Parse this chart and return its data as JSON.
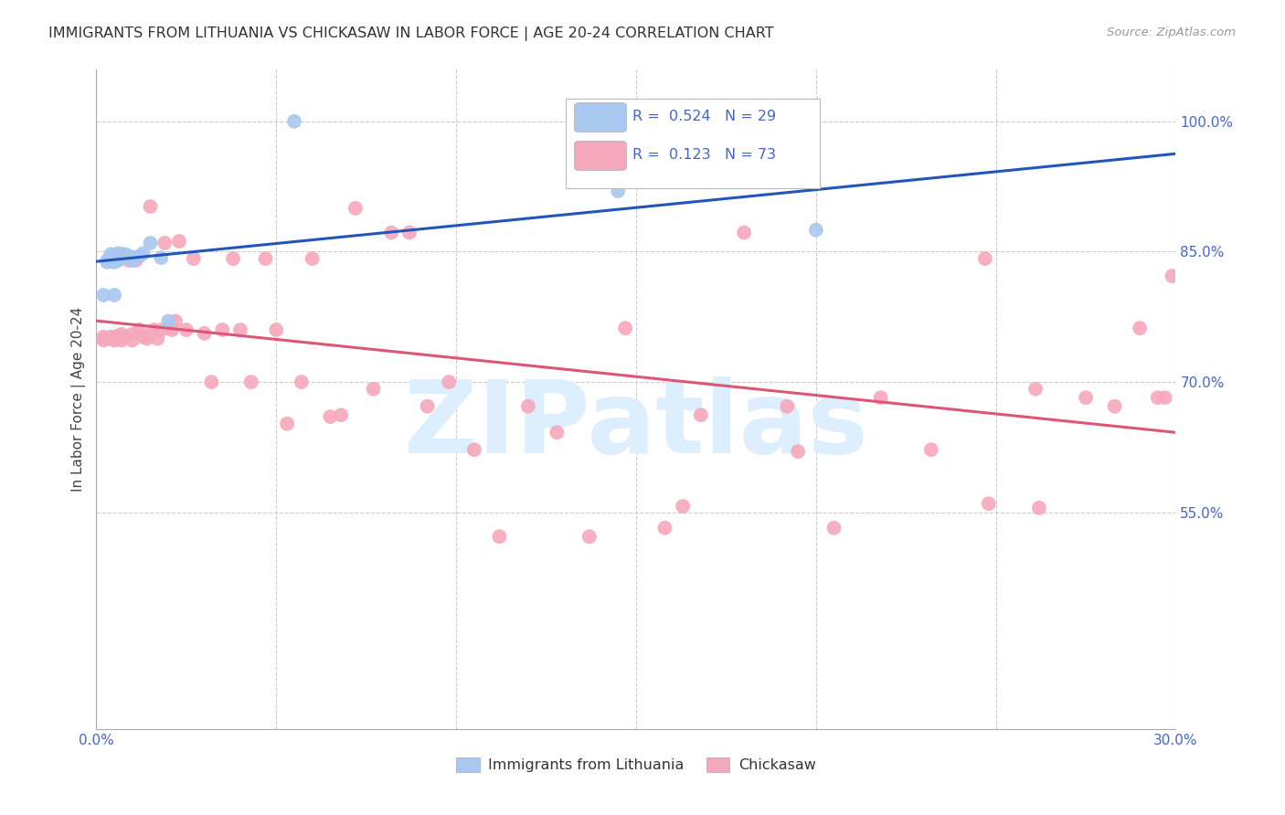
{
  "title": "IMMIGRANTS FROM LITHUANIA VS CHICKASAW IN LABOR FORCE | AGE 20-24 CORRELATION CHART",
  "source": "Source: ZipAtlas.com",
  "ylabel": "In Labor Force | Age 20-24",
  "xlabel": "",
  "xlim": [
    0.0,
    0.3
  ],
  "ylim": [
    0.3,
    1.06
  ],
  "xticks": [
    0.0,
    0.05,
    0.1,
    0.15,
    0.2,
    0.25,
    0.3
  ],
  "xticklabels": [
    "0.0%",
    "",
    "",
    "",
    "",
    "",
    "30.0%"
  ],
  "yticks": [
    0.55,
    0.7,
    0.85,
    1.0
  ],
  "yticklabels": [
    "55.0%",
    "70.0%",
    "85.0%",
    "100.0%"
  ],
  "legend_entries": [
    {
      "label": "R =  0.524   N = 29",
      "color": "#a8c8f0"
    },
    {
      "label": "R =  0.123   N = 73",
      "color": "#f5a8bc"
    }
  ],
  "watermark": "ZIPatlas",
  "watermark_color": "#ddeeff",
  "blue_color": "#a8c8f0",
  "pink_color": "#f5a8bc",
  "line_blue_color": "#2255bb",
  "line_pink_color": "#dd5577",
  "axis_color": "#4466cc",
  "grid_color": "#cccccc",
  "title_color": "#333333",
  "blue_dots_x": [
    0.002,
    0.003,
    0.003,
    0.004,
    0.004,
    0.004,
    0.005,
    0.005,
    0.005,
    0.006,
    0.006,
    0.006,
    0.007,
    0.007,
    0.008,
    0.008,
    0.009,
    0.009,
    0.01,
    0.01,
    0.011,
    0.012,
    0.013,
    0.015,
    0.018,
    0.02,
    0.055,
    0.145,
    0.2
  ],
  "blue_dots_y": [
    0.8,
    0.838,
    0.84,
    0.84,
    0.843,
    0.847,
    0.8,
    0.838,
    0.842,
    0.84,
    0.845,
    0.848,
    0.843,
    0.847,
    0.843,
    0.847,
    0.843,
    0.845,
    0.843,
    0.84,
    0.843,
    0.845,
    0.848,
    0.86,
    0.843,
    0.77,
    1.0,
    0.92,
    0.875
  ],
  "pink_dots_x": [
    0.002,
    0.002,
    0.003,
    0.004,
    0.005,
    0.005,
    0.006,
    0.006,
    0.007,
    0.007,
    0.008,
    0.009,
    0.01,
    0.01,
    0.011,
    0.012,
    0.013,
    0.014,
    0.015,
    0.016,
    0.017,
    0.018,
    0.019,
    0.02,
    0.021,
    0.022,
    0.023,
    0.025,
    0.027,
    0.03,
    0.032,
    0.035,
    0.038,
    0.04,
    0.043,
    0.047,
    0.05,
    0.053,
    0.057,
    0.06,
    0.065,
    0.068,
    0.072,
    0.077,
    0.082,
    0.087,
    0.092,
    0.098,
    0.105,
    0.112,
    0.12,
    0.128,
    0.137,
    0.147,
    0.158,
    0.168,
    0.18,
    0.192,
    0.205,
    0.218,
    0.232,
    0.247,
    0.261,
    0.275,
    0.283,
    0.29,
    0.295,
    0.297,
    0.299,
    0.163,
    0.195,
    0.248,
    0.262
  ],
  "pink_dots_y": [
    0.752,
    0.748,
    0.75,
    0.752,
    0.75,
    0.748,
    0.753,
    0.842,
    0.755,
    0.748,
    0.752,
    0.84,
    0.755,
    0.748,
    0.84,
    0.76,
    0.752,
    0.75,
    0.902,
    0.76,
    0.75,
    0.76,
    0.86,
    0.762,
    0.76,
    0.77,
    0.862,
    0.76,
    0.842,
    0.756,
    0.7,
    0.76,
    0.842,
    0.76,
    0.7,
    0.842,
    0.76,
    0.652,
    0.7,
    0.842,
    0.66,
    0.662,
    0.9,
    0.692,
    0.872,
    0.872,
    0.672,
    0.7,
    0.622,
    0.522,
    0.672,
    0.642,
    0.522,
    0.762,
    0.532,
    0.662,
    0.872,
    0.672,
    0.532,
    0.682,
    0.622,
    0.842,
    0.692,
    0.682,
    0.672,
    0.762,
    0.682,
    0.682,
    0.822,
    0.557,
    0.62,
    0.56,
    0.555
  ]
}
